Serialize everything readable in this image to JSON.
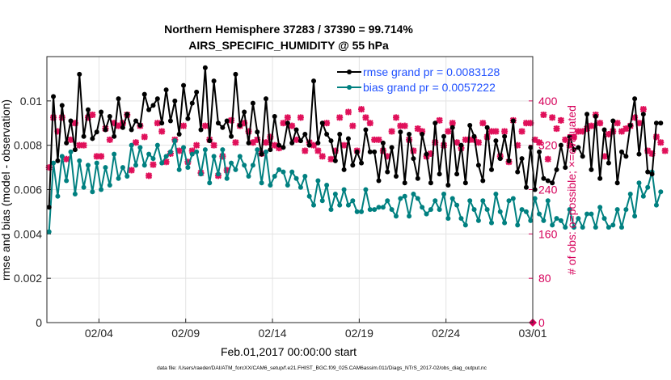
{
  "chart_data": {
    "type": "line",
    "title": "Northern Hemisphere 37283 / 37390 = 99.714%",
    "subtitle": "AIRS_SPECIFIC_HUMIDITY @ 55 hPa",
    "xlabel": "Feb.01,2017 00:00:00 start",
    "ylabel": "rmse and bias (model - observation)",
    "y2label": "# of obs: o=possible; ×=evaluated",
    "footnote": "data file: /Users/raeder/DAI/ATM_forcXX/CAM6_setup/f.e21.FHIST_BGC.f09_025.CAM6assim.011/Diags_NTrS_2017-02/obs_diag_output.nc",
    "xlim": [
      0,
      28
    ],
    "ylim": [
      0,
      0.012
    ],
    "y2lim": [
      0,
      480
    ],
    "x_tick_labels": [
      "02/04",
      "02/09",
      "02/14",
      "02/19",
      "02/24",
      "03/01"
    ],
    "x_tick_values": [
      3,
      8,
      13,
      18,
      23,
      28
    ],
    "y_tick_labels": [
      "0",
      "0.002",
      "0.004",
      "0.006",
      "0.008",
      "0.01"
    ],
    "y_tick_values": [
      0,
      0.002,
      0.004,
      0.006,
      0.008,
      0.01
    ],
    "y2_tick_labels": [
      "0",
      "80",
      "160",
      "240",
      "320",
      "400"
    ],
    "y2_tick_values": [
      0,
      80,
      160,
      240,
      320,
      400
    ],
    "grid": true,
    "legend_position": "top-right",
    "colors": {
      "rmse": "#000000",
      "bias": "#008080",
      "obs": "#e0105a",
      "legend_text": "#1f50ff",
      "y2axis": "#d6005a"
    },
    "series": [
      {
        "name": "rmse grand pr = 0.0083128",
        "axis": "left",
        "color": "#000000",
        "x_start": 0.125,
        "x_step": 0.25,
        "values": [
          0.0052,
          0.0102,
          0.0073,
          0.0098,
          0.0081,
          0.0091,
          0.0078,
          0.0112,
          0.0084,
          0.0096,
          0.0083,
          0.0086,
          0.0095,
          0.0087,
          0.0093,
          0.0084,
          0.0101,
          0.0088,
          0.0094,
          0.0087,
          0.0091,
          0.0089,
          0.0103,
          0.0096,
          0.0098,
          0.0101,
          0.009,
          0.0105,
          0.0091,
          0.01,
          0.0085,
          0.0107,
          0.0092,
          0.0099,
          0.0104,
          0.0087,
          0.0115,
          0.0082,
          0.0109,
          0.009,
          0.0088,
          0.0091,
          0.0084,
          0.0112,
          0.0089,
          0.0095,
          0.0081,
          0.0099,
          0.0086,
          0.0076,
          0.0101,
          0.0078,
          0.0093,
          0.008,
          0.0079,
          0.009,
          0.0081,
          0.0087,
          0.0082,
          0.0085,
          0.008,
          0.0109,
          0.0081,
          0.009,
          0.0085,
          0.0082,
          0.0073,
          0.0085,
          0.0069,
          0.0083,
          0.0071,
          0.0077,
          0.0072,
          0.0087,
          0.0077,
          0.0077,
          0.0064,
          0.0081,
          0.0068,
          0.0079,
          0.0066,
          0.0086,
          0.0063,
          0.0085,
          0.0074,
          0.0065,
          0.0085,
          0.0076,
          0.0063,
          0.009,
          0.0067,
          0.0084,
          0.0062,
          0.0088,
          0.0067,
          0.008,
          0.0063,
          0.0089,
          0.0084,
          0.0071,
          0.0064,
          0.0088,
          0.0069,
          0.0082,
          0.0074,
          0.0084,
          0.0073,
          0.0091,
          0.0068,
          0.0074,
          0.0061,
          0.0079,
          0.006,
          0.0077,
          0.0065,
          0.0064,
          0.0063,
          0.0069,
          0.008,
          0.007,
          0.0084,
          0.0078,
          0.0079,
          0.0075,
          0.0094,
          0.0069,
          0.0093,
          0.0065,
          0.0087,
          0.0072,
          0.0091,
          0.0063,
          0.0077,
          0.0075,
          0.0089,
          0.0101,
          0.0076,
          0.0094,
          0.0068,
          0.0067,
          0.009,
          0.009
        ]
      },
      {
        "name": "bias grand pr = 0.0057222",
        "axis": "left",
        "color": "#008080",
        "x_start": 0.125,
        "x_step": 0.25,
        "values": [
          0.0041,
          0.0072,
          0.0057,
          0.0075,
          0.0064,
          0.0077,
          0.0058,
          0.0073,
          0.0061,
          0.0071,
          0.0059,
          0.0072,
          0.006,
          0.007,
          0.0062,
          0.0076,
          0.0065,
          0.007,
          0.0066,
          0.008,
          0.0071,
          0.0079,
          0.0071,
          0.0076,
          0.0074,
          0.008,
          0.0072,
          0.0075,
          0.0077,
          0.0082,
          0.0069,
          0.0079,
          0.007,
          0.0076,
          0.0077,
          0.0067,
          0.0078,
          0.0063,
          0.0075,
          0.0067,
          0.0078,
          0.0065,
          0.0072,
          0.0069,
          0.0075,
          0.0071,
          0.0066,
          0.0071,
          0.0078,
          0.0063,
          0.0077,
          0.0062,
          0.0066,
          0.0069,
          0.0068,
          0.0062,
          0.0068,
          0.0065,
          0.0061,
          0.0066,
          0.0057,
          0.0053,
          0.0064,
          0.0055,
          0.0062,
          0.0051,
          0.0058,
          0.0053,
          0.006,
          0.0053,
          0.0055,
          0.005,
          0.005,
          0.006,
          0.0051,
          0.0051,
          0.0052,
          0.0052,
          0.0055,
          0.0051,
          0.0048,
          0.0056,
          0.0057,
          0.0048,
          0.0058,
          0.0056,
          0.0052,
          0.0049,
          0.0051,
          0.0055,
          0.0051,
          0.0058,
          0.0047,
          0.0056,
          0.0053,
          0.0047,
          0.0044,
          0.0055,
          0.0051,
          0.0046,
          0.0055,
          0.0051,
          0.0045,
          0.0058,
          0.005,
          0.0045,
          0.0055,
          0.0056,
          0.0044,
          0.0051,
          0.005,
          0.0046,
          0.0056,
          0.0049,
          0.0046,
          0.0055,
          0.0044,
          0.0047,
          0.0046,
          0.0043,
          0.0051,
          0.0043,
          0.0047,
          0.0043,
          0.0049,
          0.0049,
          0.0043,
          0.0052,
          0.0047,
          0.0043,
          0.0044,
          0.0051,
          0.0043,
          0.0051,
          0.0058,
          0.0048,
          0.0063,
          0.0057,
          0.0061,
          0.0068,
          0.0053,
          0.0059
        ]
      },
      {
        "name": "# of obs possible / evaluated",
        "axis": "right",
        "marker": "x",
        "color": "#e0105a",
        "x_start": 0.125,
        "x_step": 0.25,
        "values": [
          280,
          370,
          345,
          370,
          295,
          330,
          360,
          320,
          320,
          370,
          375,
          300,
          300,
          350,
          330,
          360,
          355,
          360,
          375,
          275,
          325,
          355,
          335,
          265,
          285,
          360,
          345,
          290,
          305,
          330,
          310,
          355,
          290,
          310,
          320,
          270,
          355,
          330,
          320,
          265,
          300,
          275,
          365,
          325,
          355,
          360,
          345,
          325,
          330,
          305,
          325,
          335,
          320,
          315,
          360,
          370,
          355,
          330,
          370,
          310,
          325,
          320,
          310,
          300,
          360,
          295,
          310,
          370,
          320,
          380,
          355,
          310,
          385,
          370,
          360,
          330,
          330,
          310,
          300,
          345,
          370,
          355,
          355,
          330,
          310,
          350,
          345,
          300,
          305,
          325,
          365,
          320,
          345,
          360,
          325,
          315,
          330,
          330,
          330,
          325,
          360,
          335,
          345,
          345,
          300,
          345,
          290,
          365,
          320,
          345,
          360,
          360,
          330,
          325,
          375,
          295,
          370,
          350,
          365,
          330,
          320,
          335,
          345,
          345,
          350,
          355,
          375,
          360,
          300,
          340,
          345,
          360,
          345,
          350,
          355,
          370,
          360,
          385,
          310,
          305,
          335,
          325,
          310
        ]
      }
    ],
    "legend": [
      {
        "name": "rmse grand pr = 0.0083128",
        "color": "#000000"
      },
      {
        "name": "bias grand pr = 0.0057222",
        "color": "#008080"
      }
    ]
  }
}
